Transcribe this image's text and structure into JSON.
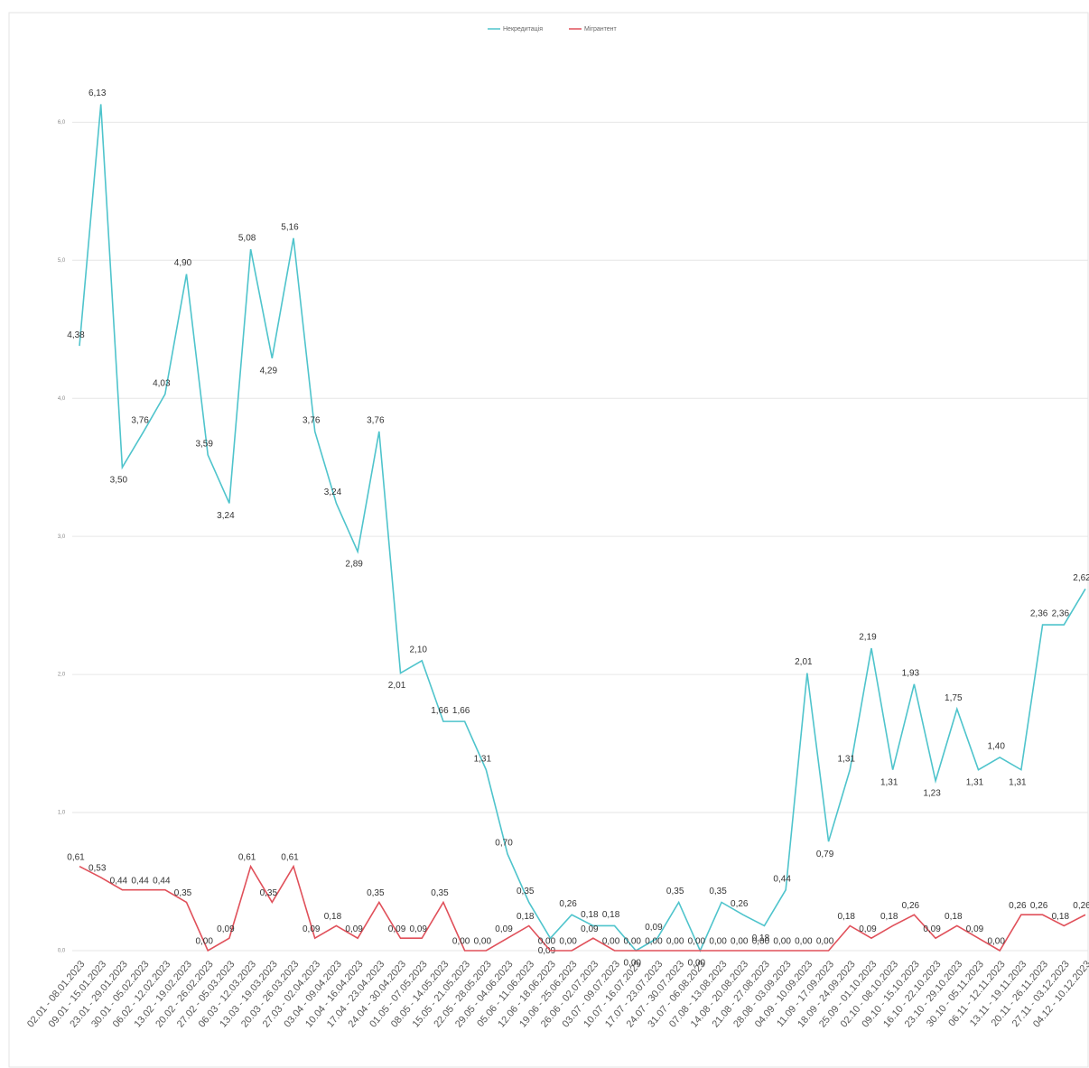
{
  "chart_data": {
    "type": "line",
    "categories": [
      "02.01 - 08.01.2023",
      "09.01 - 15.01.2023",
      "23.01 - 29.01.2023",
      "30.01 - 05.02.2023",
      "06.02 - 12.02.2023",
      "13.02 - 19.02.2023",
      "20.02 - 26.02.2023",
      "27.02 - 05.03.2023",
      "06.03 - 12.03.2023",
      "13.03 - 19.03.2023",
      "20.03 - 26.03.2023",
      "27.03 - 02.04.2023",
      "03.04 - 09.04.2023",
      "10.04 - 16.04.2023",
      "17.04 - 23.04.2023",
      "24.04 - 30.04.2023",
      "01.05 - 07.05.2023",
      "08.05 - 14.05.2023",
      "15.05 - 21.05.2023",
      "22.05 - 28.05.2023",
      "29.05 - 04.06.2023",
      "05.06 - 11.06.2023",
      "12.06 - 18.06.2023",
      "19.06 - 25.06.2023",
      "26.06 - 02.07.2023",
      "03.07 - 09.07.2023",
      "10.07 - 16.07.2023",
      "17.07 - 23.07.2023",
      "24.07 - 30.07.2023",
      "31.07 - 06.08.2023",
      "07.08 - 13.08.2023",
      "14.08 - 20.08.2023",
      "21.08 - 27.08.2023",
      "28.08 - 03.09.2023",
      "04.09 - 10.09.2023",
      "11.09 - 17.09.2023",
      "18.09 - 24.09.2023",
      "25.09 - 01.10.2023",
      "02.10 - 08.10.2023",
      "09.10 - 15.10.2023",
      "16.10 - 22.10.2023",
      "23.10 - 29.10.2023",
      "30.10 - 05.11.2023",
      "06.11 - 12.11.2023",
      "13.11 - 19.11.2023",
      "20.11 - 26.11.2023",
      "27.11 - 03.12.2023",
      "04.12 - 10.12.2023"
    ],
    "series": [
      {
        "name": "Некредитація",
        "color": "#4fc4cc",
        "values": [
          4.38,
          6.13,
          3.5,
          3.76,
          4.03,
          4.9,
          3.59,
          3.24,
          5.08,
          4.29,
          5.16,
          3.76,
          3.24,
          2.89,
          3.76,
          2.01,
          2.1,
          1.66,
          1.66,
          1.31,
          0.7,
          0.35,
          0.09,
          0.26,
          0.18,
          0.18,
          0.0,
          0.09,
          0.35,
          0.0,
          0.35,
          0.26,
          0.18,
          0.44,
          2.01,
          0.79,
          1.31,
          2.19,
          1.31,
          1.93,
          1.23,
          1.75,
          1.31,
          1.4,
          1.31,
          2.36,
          2.36,
          2.62
        ],
        "value_labels": [
          "4,38",
          "6,13",
          "3,50",
          "3,76",
          "4,03",
          "4,90",
          "3,59",
          "3,24",
          "5,08",
          "4,29",
          "5,16",
          "3,76",
          "3,24",
          "2,89",
          "3,76",
          "2,01",
          "2,10",
          "1,66",
          "1,66",
          "1,31",
          "0,70",
          "0,35",
          "0,09",
          "0,26",
          "0,18",
          "0,18",
          "0,00",
          "0,09",
          "0,35",
          "0,00",
          "0,35",
          "0,26",
          "0,18",
          "0,44",
          "2,01",
          "0,79",
          "1,31",
          "2,19",
          "1,31",
          "1,93",
          "1,23",
          "1,75",
          "1,31",
          "1,40",
          "1,31",
          "2,36",
          "2,36",
          "2,62"
        ]
      },
      {
        "name": "Мігрантент",
        "color": "#e0505a",
        "values": [
          0.61,
          0.53,
          0.44,
          0.44,
          0.44,
          0.35,
          0.0,
          0.09,
          0.61,
          0.35,
          0.61,
          0.09,
          0.18,
          0.09,
          0.35,
          0.09,
          0.09,
          0.35,
          0.0,
          0.0,
          0.09,
          0.18,
          0.0,
          0.0,
          0.09,
          0.0,
          0.0,
          0.0,
          0.0,
          0.0,
          0.0,
          0.0,
          0.0,
          0.0,
          0.0,
          0.0,
          0.18,
          0.09,
          0.18,
          0.26,
          0.09,
          0.18,
          0.09,
          0.0,
          0.26,
          0.26,
          0.18,
          0.26
        ],
        "value_labels": [
          "0,61",
          "0,53",
          "0,44",
          "0,44",
          "0,44",
          "0,35",
          "0,00",
          "0,09",
          "0,61",
          "0,35",
          "0,61",
          "0,09",
          "0,18",
          "0,09",
          "0,35",
          "0,09",
          "0,09",
          "0,35",
          "0,00",
          "0,00",
          "0,09",
          "0,18",
          "0,00",
          "0,00",
          "0,09",
          "0,00",
          "0,00",
          "0,00",
          "0,00",
          "0,00",
          "0,00",
          "0,00",
          "0,00",
          "0,00",
          "0,00",
          "0,00",
          "0,18",
          "0,09",
          "0,18",
          "0,26",
          "0,09",
          "0,18",
          "0,09",
          "0,00",
          "0,26",
          "0,26",
          "0,18",
          "0,26"
        ]
      }
    ],
    "ylim": [
      0,
      6.8
    ],
    "yticks": [
      {
        "value": 0,
        "label": "0,0"
      },
      {
        "value": 1,
        "label": "1,0"
      },
      {
        "value": 2,
        "label": "2,0"
      },
      {
        "value": 3,
        "label": "3,0"
      },
      {
        "value": 4,
        "label": "4,0"
      },
      {
        "value": 5,
        "label": "5,0"
      },
      {
        "value": 6,
        "label": "6,0"
      }
    ],
    "grid": true,
    "legend": "top"
  }
}
